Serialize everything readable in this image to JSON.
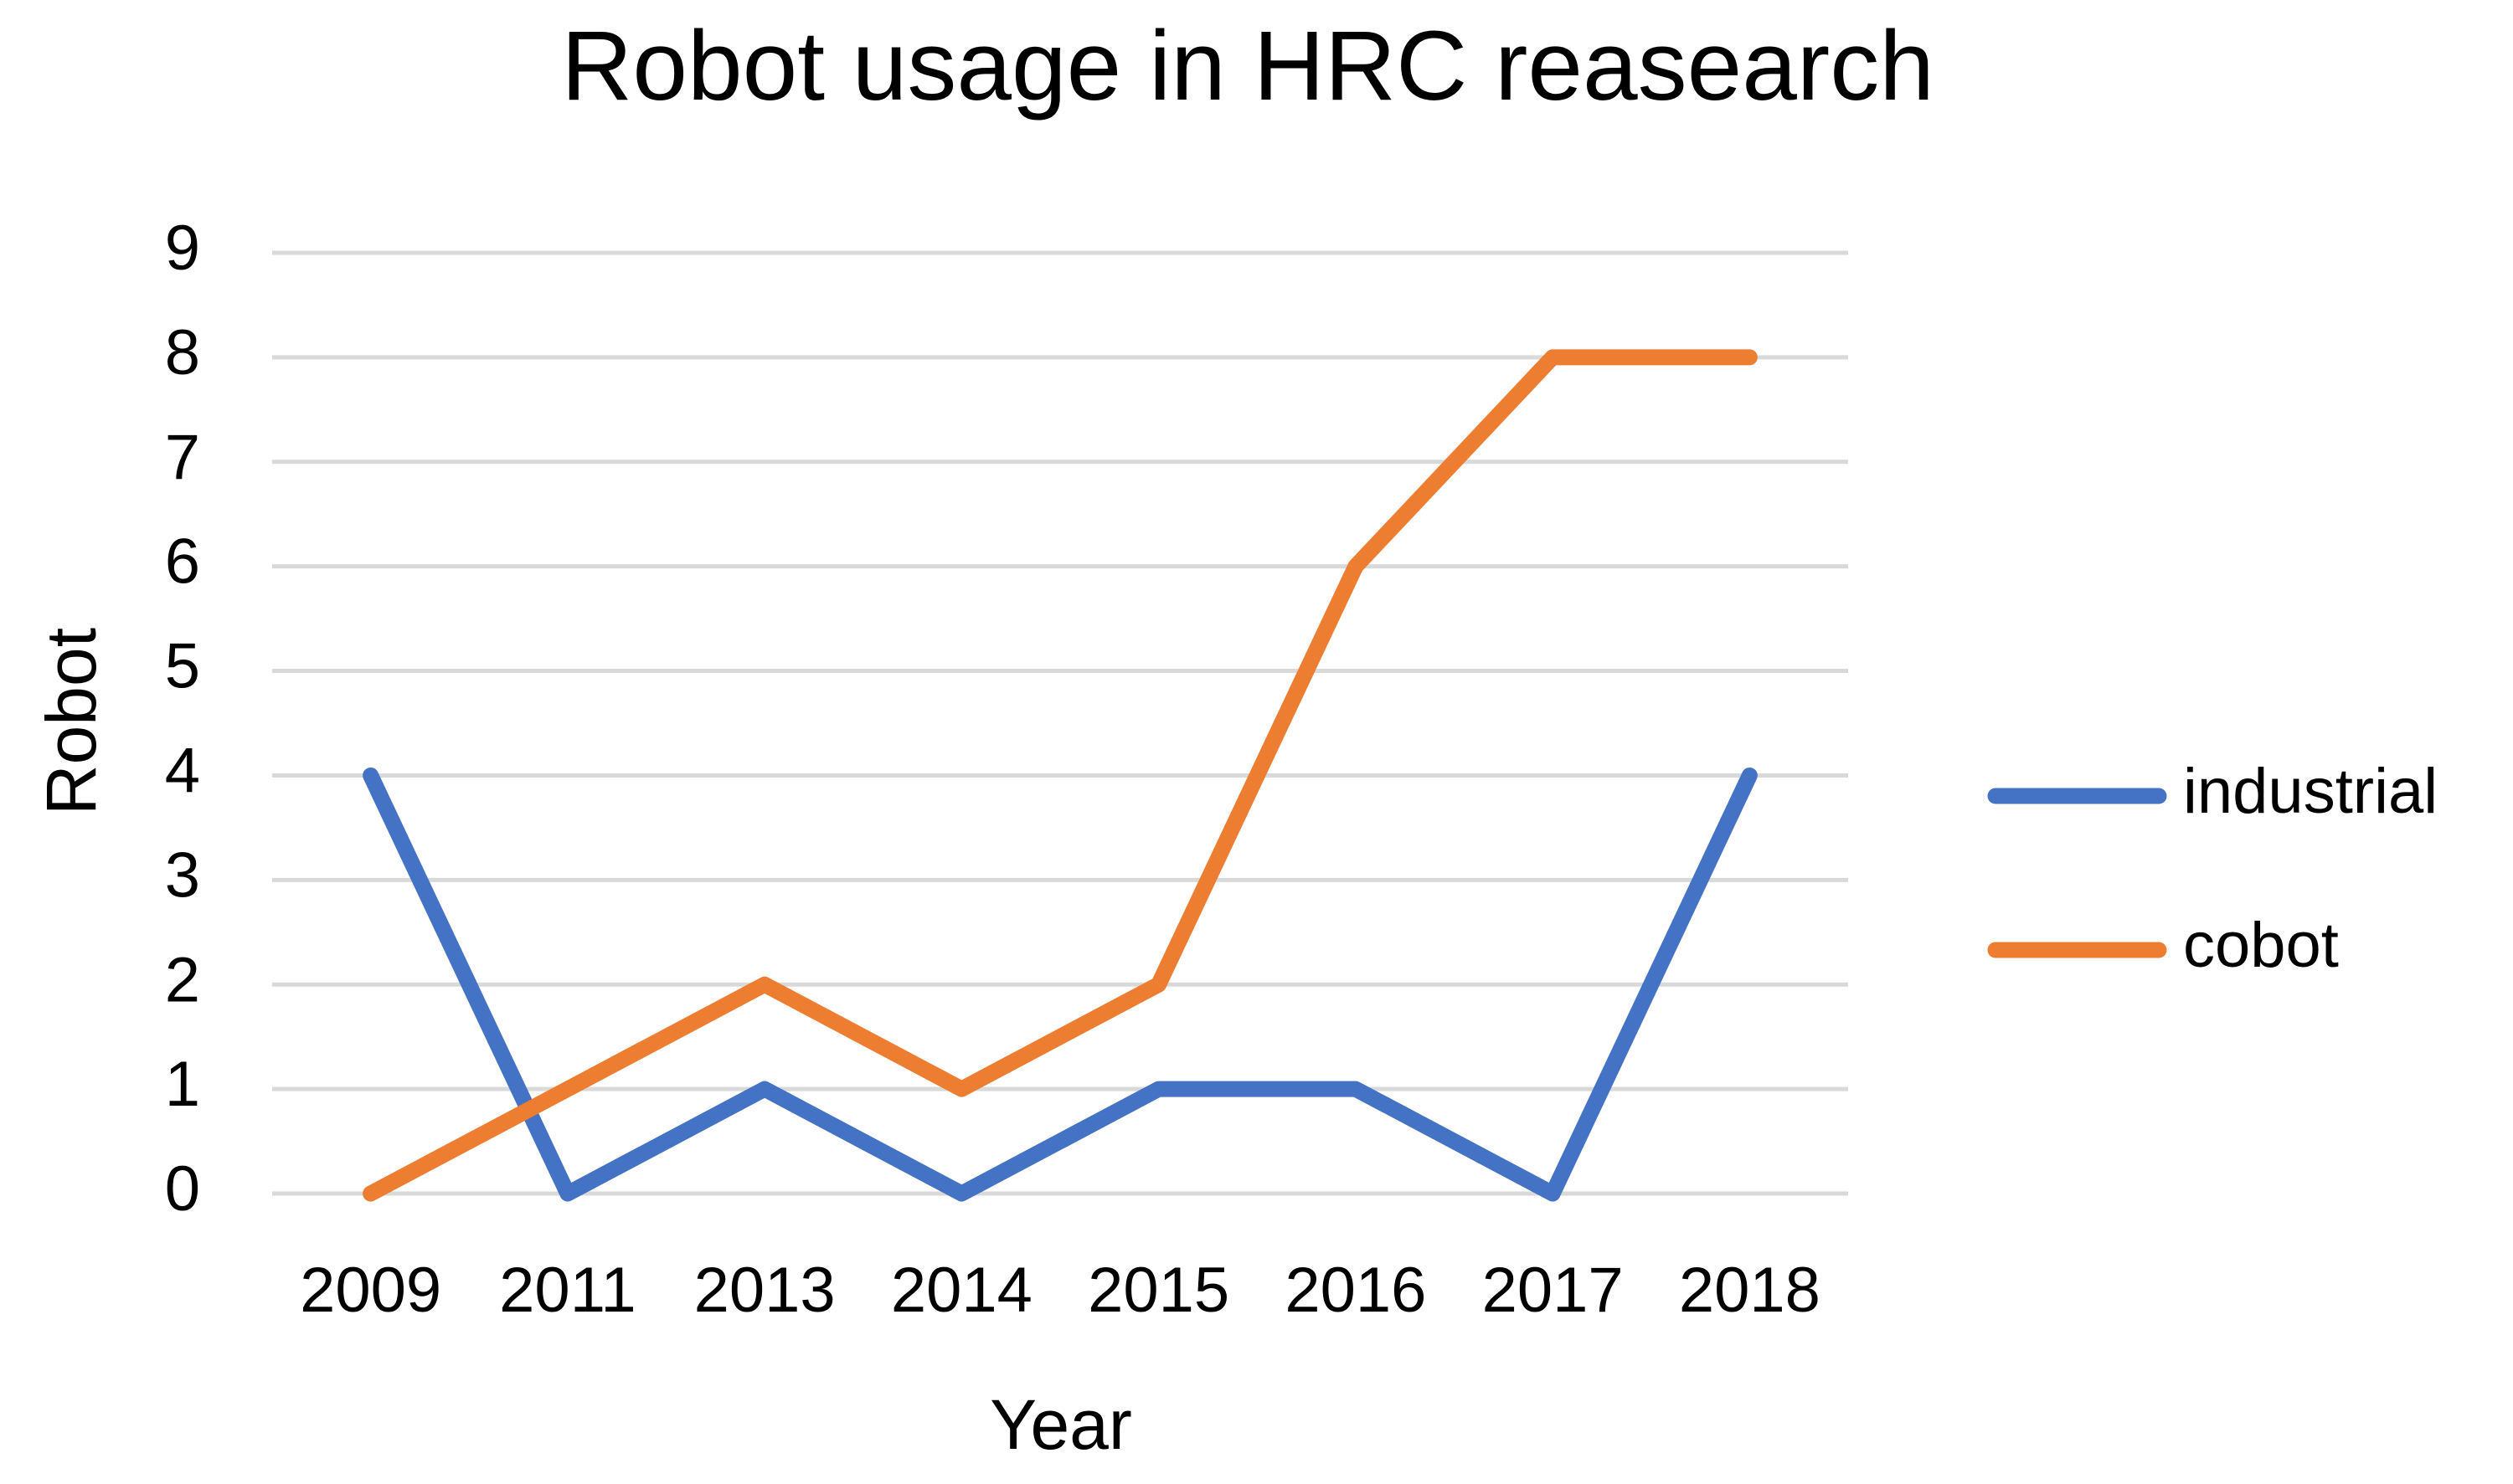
{
  "chart_data": {
    "type": "line",
    "title": "Robot usage in HRC reasearch",
    "x_label": "Year",
    "y_label": "Robot",
    "categories": [
      "2009",
      "2011",
      "2013",
      "2014",
      "2015",
      "2016",
      "2017",
      "2018"
    ],
    "series": [
      {
        "name": "industrial",
        "color": "#4472c4",
        "values": [
          4,
          0,
          1,
          0,
          1,
          1,
          0,
          4
        ]
      },
      {
        "name": "cobot",
        "color": "#ed7d31",
        "values": [
          0,
          1,
          2,
          1,
          2,
          6,
          8,
          8
        ]
      }
    ],
    "ylim": [
      0,
      9
    ],
    "yticks": [
      0,
      1,
      2,
      3,
      4,
      5,
      6,
      7,
      8,
      9
    ],
    "grid": true,
    "legend": "right"
  }
}
